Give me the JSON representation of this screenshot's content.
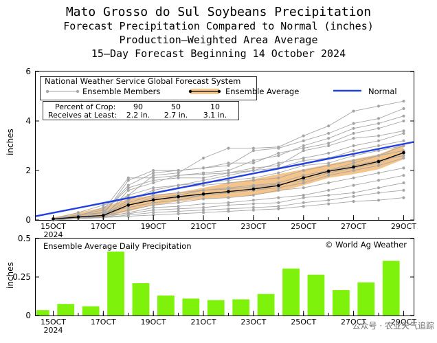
{
  "titles": {
    "line1": "Mato Grosso do Sul Soybeans Precipitation",
    "line2": "Forecast Precipitation Compared to Normal (inches)",
    "line3": "Production—Weighted Area Average",
    "line4": "15—Day Forecast Beginning 14 October 2024"
  },
  "colors": {
    "ensemble_member": "#a6a6a6",
    "band_fill": "#f5c48a",
    "ensemble_avg": "#000000",
    "normal": "#2040e0",
    "bar": "#7ef20a"
  },
  "chart_data": [
    {
      "type": "line",
      "ylabel": "inches",
      "ylim": [
        0,
        6
      ],
      "yticks": [
        0,
        2,
        4,
        6
      ],
      "xlim": [
        14.3,
        29.4
      ],
      "x_ticks": [
        {
          "x": 15,
          "label": "15OCT",
          "sub": "2024"
        },
        {
          "x": 17,
          "label": "17OCT",
          "sub": ""
        },
        {
          "x": 19,
          "label": "19OCT",
          "sub": ""
        },
        {
          "x": 21,
          "label": "21OCT",
          "sub": ""
        },
        {
          "x": 23,
          "label": "23OCT",
          "sub": ""
        },
        {
          "x": 25,
          "label": "25OCT",
          "sub": ""
        },
        {
          "x": 27,
          "label": "27OCT",
          "sub": ""
        },
        {
          "x": 29,
          "label": "29OCT",
          "sub": ""
        }
      ],
      "legend": {
        "header": "National Weather Service Global Forecast System",
        "members_label": "Ensemble Members",
        "avg_label": "Ensemble Average",
        "normal_label": "Normal"
      },
      "percent_box": {
        "row1_label": "Percent of Crop:",
        "row1_values": [
          "90",
          "50",
          "10"
        ],
        "row2_label": "Receives at Least:",
        "row2_values": [
          "2.2 in.",
          "2.7 in.",
          "3.1 in."
        ]
      },
      "x": [
        15,
        16,
        17,
        18,
        19,
        20,
        21,
        22,
        23,
        24,
        25,
        26,
        27,
        28,
        29
      ],
      "ensemble_average": [
        0.04,
        0.12,
        0.18,
        0.6,
        0.81,
        0.94,
        1.05,
        1.15,
        1.25,
        1.39,
        1.7,
        1.97,
        2.14,
        2.36,
        2.72
      ],
      "normal": {
        "x": [
          14.3,
          29.4
        ],
        "values": [
          0.15,
          3.15
        ]
      },
      "band_upper": [
        0.1,
        0.3,
        0.5,
        0.85,
        1.0,
        1.12,
        1.3,
        1.5,
        1.65,
        1.85,
        2.05,
        2.25,
        2.45,
        2.65,
        3.05
      ],
      "band_lower": [
        0.0,
        0.05,
        0.1,
        0.35,
        0.6,
        0.75,
        0.85,
        0.92,
        1.0,
        1.15,
        1.4,
        1.7,
        1.85,
        2.05,
        2.45
      ],
      "ensemble_members": [
        [
          0.05,
          0.1,
          0.2,
          1.0,
          1.8,
          1.9,
          2.5,
          2.9,
          2.9,
          2.95,
          3.4,
          3.8,
          4.4,
          4.6,
          4.8
        ],
        [
          0.05,
          0.2,
          0.3,
          1.4,
          1.9,
          2.0,
          2.1,
          2.2,
          2.8,
          2.9,
          3.2,
          3.5,
          3.9,
          4.1,
          4.5
        ],
        [
          0.05,
          0.1,
          0.1,
          1.2,
          1.5,
          1.8,
          1.9,
          2.0,
          2.4,
          2.6,
          3.0,
          3.3,
          3.7,
          3.9,
          4.2
        ],
        [
          0.0,
          0.15,
          0.2,
          1.6,
          2.0,
          2.0,
          2.1,
          2.3,
          2.3,
          2.7,
          2.9,
          3.1,
          3.5,
          3.7,
          4.0
        ],
        [
          0.0,
          0.1,
          0.3,
          1.3,
          1.6,
          1.7,
          1.7,
          1.9,
          2.1,
          2.2,
          2.8,
          3.0,
          3.3,
          3.4,
          3.6
        ],
        [
          0.05,
          0.2,
          0.4,
          1.7,
          1.7,
          1.8,
          1.85,
          1.9,
          2.0,
          2.3,
          2.5,
          2.7,
          3.0,
          3.2,
          3.5
        ],
        [
          0.05,
          0.1,
          0.2,
          0.8,
          1.2,
          1.4,
          1.6,
          1.8,
          2.0,
          2.1,
          2.4,
          2.5,
          2.8,
          3.0,
          3.2
        ],
        [
          0.0,
          0.15,
          0.5,
          1.0,
          1.3,
          1.4,
          1.5,
          1.6,
          1.7,
          1.9,
          2.2,
          2.3,
          2.6,
          2.8,
          3.0
        ],
        [
          0.05,
          0.3,
          0.6,
          0.9,
          1.1,
          1.3,
          1.4,
          1.5,
          1.6,
          1.7,
          2.0,
          2.2,
          2.4,
          2.6,
          2.8
        ],
        [
          0.05,
          0.1,
          0.2,
          0.6,
          0.9,
          1.0,
          1.2,
          1.3,
          1.4,
          1.5,
          1.8,
          2.0,
          2.2,
          2.4,
          2.6
        ],
        [
          0.0,
          0.2,
          0.3,
          0.5,
          0.7,
          0.8,
          1.0,
          1.1,
          1.2,
          1.3,
          1.5,
          1.8,
          2.0,
          2.2,
          2.5
        ],
        [
          0.05,
          0.1,
          0.15,
          0.4,
          0.6,
          0.7,
          0.85,
          0.9,
          1.0,
          1.2,
          1.3,
          1.5,
          1.7,
          1.9,
          2.1
        ],
        [
          0.0,
          0.05,
          0.1,
          0.3,
          0.5,
          0.55,
          0.65,
          0.7,
          0.8,
          0.9,
          1.0,
          1.2,
          1.4,
          1.6,
          1.8
        ],
        [
          0.05,
          0.1,
          0.2,
          0.25,
          0.4,
          0.45,
          0.5,
          0.6,
          0.65,
          0.7,
          0.9,
          1.0,
          1.1,
          1.3,
          1.5
        ],
        [
          0.0,
          0.05,
          0.1,
          0.2,
          0.3,
          0.35,
          0.4,
          0.45,
          0.5,
          0.55,
          0.7,
          0.8,
          0.95,
          1.1,
          1.2
        ],
        [
          0.0,
          0.05,
          0.1,
          0.15,
          0.2,
          0.25,
          0.3,
          0.35,
          0.4,
          0.45,
          0.55,
          0.65,
          0.75,
          0.8,
          0.9
        ],
        [
          0.05,
          0.1,
          0.1,
          0.6,
          0.8,
          0.9,
          1.0,
          1.1,
          1.3,
          1.4,
          1.7,
          2.0,
          2.3,
          2.6,
          3.0
        ],
        [
          0.0,
          0.1,
          0.2,
          0.7,
          1.0,
          1.1,
          1.2,
          1.25,
          1.35,
          1.45,
          1.6,
          1.9,
          2.1,
          2.3,
          2.7
        ]
      ]
    },
    {
      "type": "bar",
      "title": "Ensemble Average Daily Precipitation",
      "watermark": "© World Ag Weather",
      "ylabel": "inches",
      "ylim": [
        0,
        0.5
      ],
      "yticks": [
        {
          "v": 0,
          "label": "0"
        },
        {
          "v": 0.25,
          "label": "0.25"
        },
        {
          "v": 0.5,
          "label": "0.5"
        }
      ],
      "x": [
        15,
        16,
        17,
        18,
        19,
        20,
        21,
        22,
        23,
        24,
        25,
        26,
        27,
        28,
        29
      ],
      "values": [
        0.035,
        0.075,
        0.06,
        0.415,
        0.21,
        0.13,
        0.11,
        0.1,
        0.105,
        0.14,
        0.305,
        0.265,
        0.165,
        0.215,
        0.355
      ]
    }
  ],
  "footer_watermark": "公众号 · 农业天气追踪"
}
